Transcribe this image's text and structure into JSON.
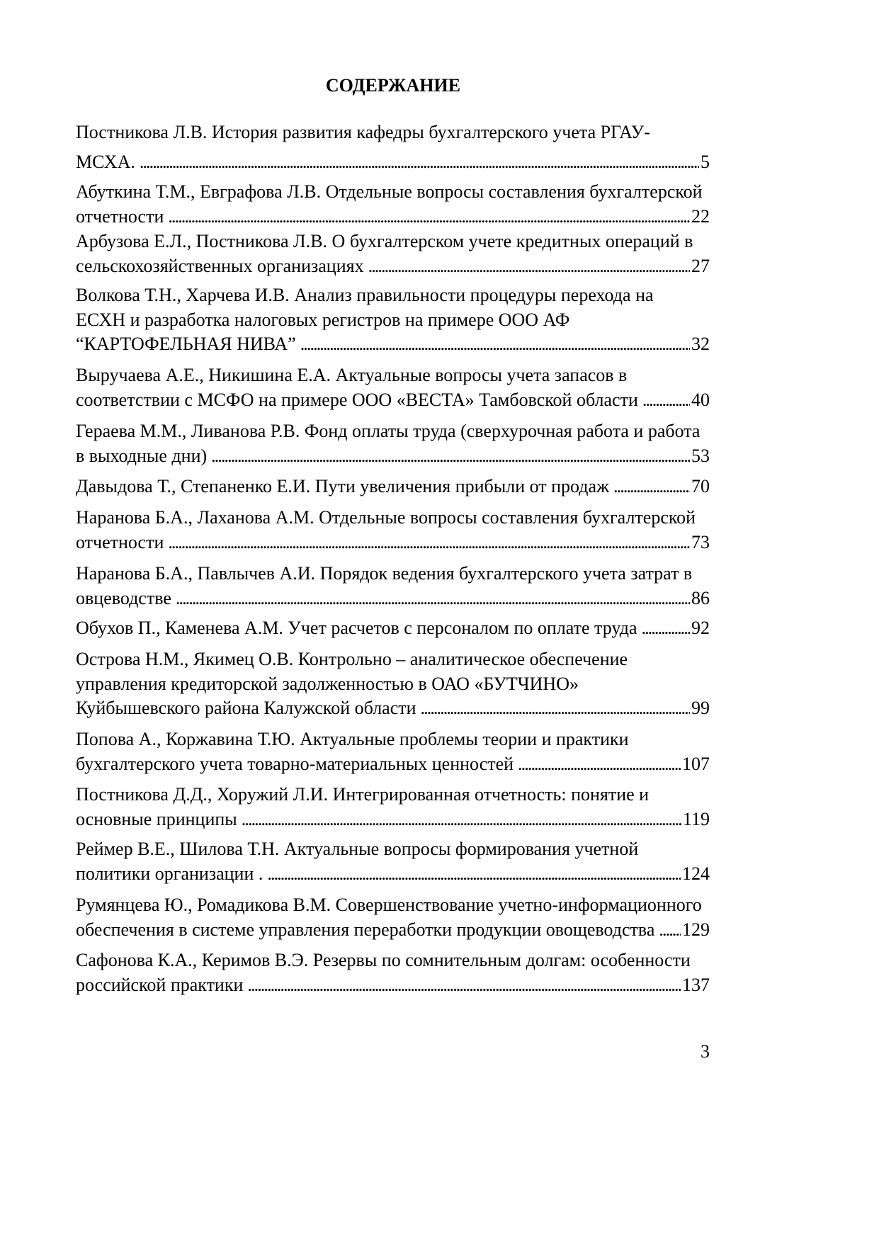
{
  "title": "СОДЕРЖАНИЕ",
  "entries": [
    {
      "lines": [
        "Постникова Л.В. История развития кафедры бухгалтерского учета РГАУ-"
      ],
      "last": "МСХА.",
      "page": "5"
    },
    {
      "lines": [
        "Абуткина Т.М., Евграфова Л.В. Отдельные вопросы составления бухгалтерской"
      ],
      "last": "отчетности",
      "page": "22"
    },
    {
      "lines": [
        "Арбузова Е.Л., Постникова Л.В. О бухгалтерском учете кредитных операций в"
      ],
      "last": "сельскохозяйственных организациях",
      "page": "27"
    },
    {
      "lines": [
        "Волкова Т.Н., Харчева И.В. Анализ правильности процедуры перехода на",
        "ЕСХН и разработка налоговых регистров на примере ООО АФ"
      ],
      "last": "“КАРТОФЕЛЬНАЯ НИВА”",
      "page": "32"
    },
    {
      "lines": [
        "Выручаева А.Е., Никишина Е.А. Актуальные вопросы учета запасов в"
      ],
      "last": "соответствии с МСФО на примере ООО «ВЕСТА» Тамбовской области",
      "page": "40"
    },
    {
      "lines": [
        "Гераева М.М., Ливанова Р.В. Фонд оплаты труда (сверхурочная работа и работа"
      ],
      "last": "в выходные дни)",
      "page": "53"
    },
    {
      "lines": [],
      "last": "Давыдова Т., Степаненко Е.И. Пути увеличения прибыли от продаж",
      "page": "70"
    },
    {
      "lines": [
        "Наранова Б.А., Лаханова А.М. Отдельные вопросы составления бухгалтерской"
      ],
      "last": "отчетности",
      "page": "73"
    },
    {
      "lines": [
        "Наранова Б.А., Павлычев А.И. Порядок ведения бухгалтерского учета затрат в"
      ],
      "last": "овцеводстве",
      "page": "86"
    },
    {
      "lines": [],
      "last": "Обухов П., Каменева А.М. Учет расчетов с персоналом по оплате труда",
      "page": "92"
    },
    {
      "lines": [
        "Острова Н.М., Якимец О.В. Контрольно – аналитическое обеспечение",
        "управления кредиторской задолженностью в ОАО «БУТЧИНО»"
      ],
      "last": "Куйбышевского района Калужской области",
      "page": "99"
    },
    {
      "lines": [
        "Попова А., Коржавина Т.Ю. Актуальные проблемы теории и практики"
      ],
      "last": "бухгалтерского учета товарно-материальных ценностей",
      "page": "107"
    },
    {
      "lines": [
        "Постникова Д.Д., Хоружий Л.И. Интегрированная отчетность: понятие и"
      ],
      "last": "основные принципы",
      "page": "119"
    },
    {
      "lines": [
        "Реймер В.Е., Шилова Т.Н. Актуальные вопросы формирования учетной"
      ],
      "last": "политики организации .",
      "page": "124"
    },
    {
      "lines": [
        "Румянцева Ю., Ромадикова В.М. Совершенствование учетно-информационного"
      ],
      "last": "обеспечения в системе управления переработки продукции овощеводства",
      "page": "129"
    },
    {
      "lines": [
        "Сафонова К.А., Керимов В.Э. Резервы по сомнительным долгам: особенности"
      ],
      "last": "российской практики",
      "page": "137"
    }
  ],
  "page_number": "3"
}
